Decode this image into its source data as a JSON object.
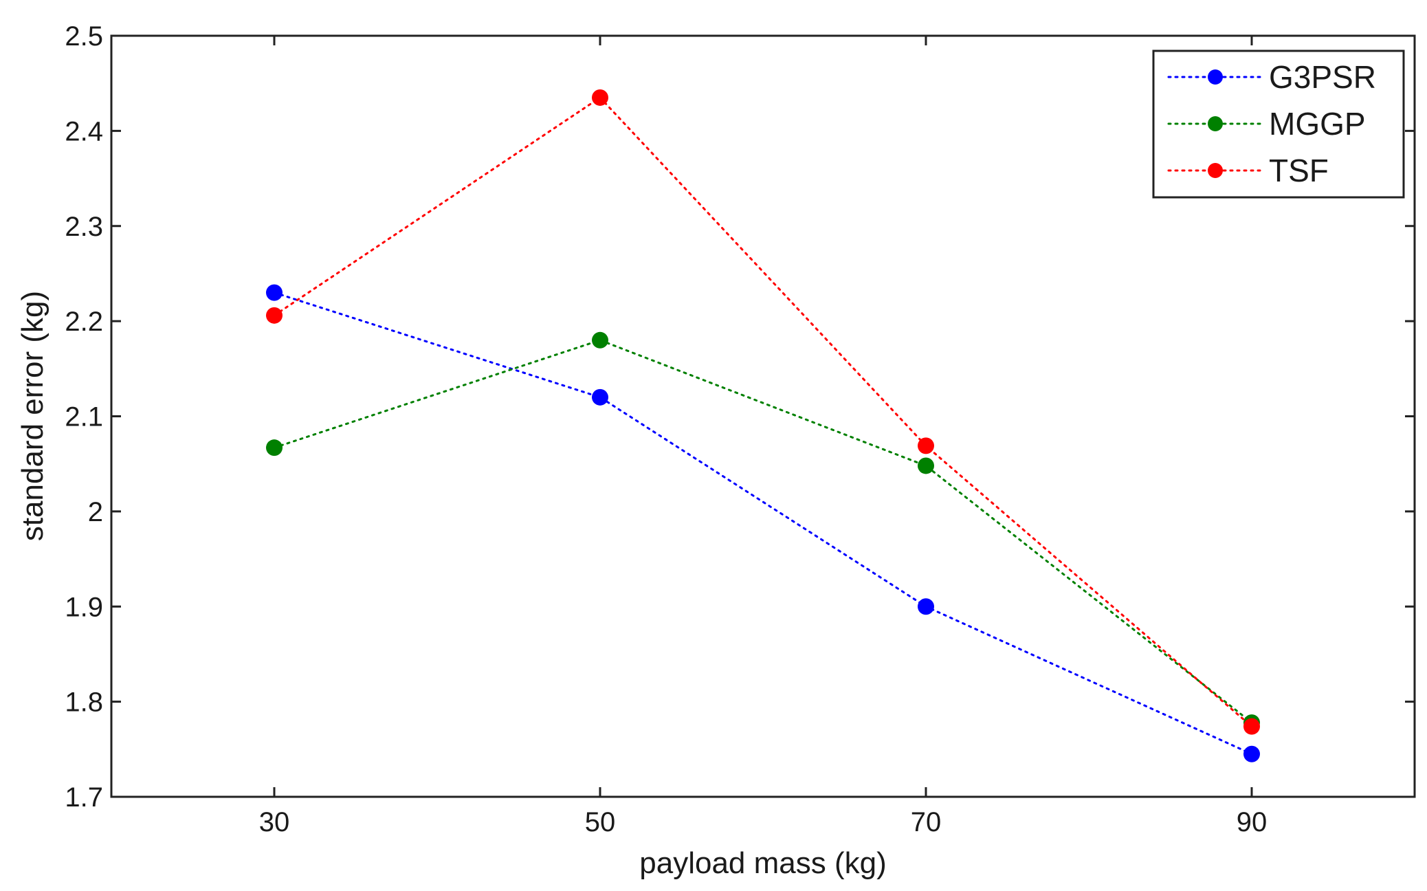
{
  "chart_data": {
    "type": "line",
    "title": "",
    "xlabel": "payload mass (kg)",
    "ylabel": "standard error (kg)",
    "x": [
      30,
      50,
      70,
      90
    ],
    "xlim": [
      20,
      100
    ],
    "ylim": [
      1.7,
      2.5
    ],
    "xticks": [
      "30",
      "50",
      "70",
      "90"
    ],
    "yticks": [
      "1.7",
      "1.8",
      "1.9",
      "2",
      "2.1",
      "2.2",
      "2.3",
      "2.4",
      "2.5"
    ],
    "grid": false,
    "line_style": "dotted",
    "marker": "circle",
    "legend_position": "top-right",
    "series": [
      {
        "name": "G3PSR",
        "color": "#0000ff",
        "values": [
          2.23,
          2.12,
          1.9,
          1.745
        ]
      },
      {
        "name": "MGGP",
        "color": "#008000",
        "values": [
          2.067,
          2.18,
          2.048,
          1.778
        ]
      },
      {
        "name": "TSF",
        "color": "#ff0000",
        "values": [
          2.206,
          2.435,
          2.069,
          1.774
        ]
      }
    ]
  }
}
